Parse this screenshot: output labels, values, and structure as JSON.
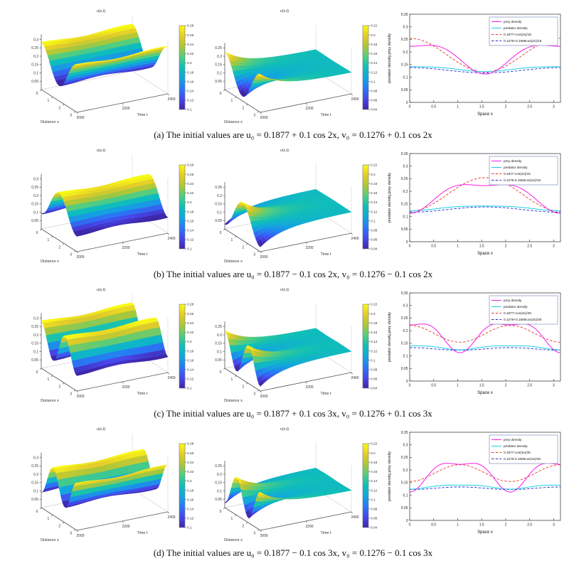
{
  "page": {
    "background": "#ffffff"
  },
  "chart_data": {
    "type": "figure-grid",
    "colormap": [
      [
        0,
        [
          62,
          38,
          168
        ]
      ],
      [
        0.125,
        [
          71,
          71,
          235
        ]
      ],
      [
        0.25,
        [
          40,
          120,
          245
        ]
      ],
      [
        0.375,
        [
          18,
          166,
          222
        ]
      ],
      [
        0.5,
        [
          15,
          190,
          185
        ]
      ],
      [
        0.625,
        [
          80,
          205,
          130
        ]
      ],
      [
        0.75,
        [
          171,
          199,
          57
        ]
      ],
      [
        0.875,
        [
          228,
          203,
          42
        ]
      ],
      [
        1,
        [
          249,
          251,
          21
        ]
      ]
    ],
    "surface_u": {
      "title": "u(x,t)",
      "xlabel": "Distance x",
      "tlabel": "Time t",
      "xticks": [
        "0",
        "1",
        "2",
        "3"
      ],
      "tticks": [
        "2000",
        "2200",
        "2400"
      ],
      "zticks": [
        "0.05",
        "0.1",
        "0.15",
        "0.2",
        "0.25",
        "0.3"
      ],
      "ztop": 0.33,
      "base": 0.1877,
      "amp": 0.1,
      "cmin": 0.1,
      "cmax": 0.28,
      "cticks": [
        "0.1",
        "0.12",
        "0.14",
        "0.16",
        "0.18",
        "0.2",
        "0.22",
        "0.24",
        "0.26",
        "0.28"
      ]
    },
    "surface_v": {
      "title": "v(x,t)",
      "xlabel": "Distance x",
      "tlabel": "Time t",
      "xticks": [
        "0",
        "1",
        "2",
        "3"
      ],
      "tticks": [
        "2000",
        "2200",
        "2400"
      ],
      "zticks": [
        "0.05",
        "0.1",
        "0.15",
        "0.2",
        "0.25"
      ],
      "ztop": 0.28,
      "base": 0.1276,
      "amp": 0.1,
      "cmin": 0.04,
      "cmax": 0.22,
      "cticks": [
        "0.04",
        "0.06",
        "0.08",
        "0.1",
        "0.12",
        "0.14",
        "0.16",
        "0.18",
        "0.2",
        "0.22"
      ]
    },
    "profile": {
      "xlabel": "Space x",
      "ylabel": "predator density,prey density",
      "xticks": [
        "0",
        "0.5",
        "1",
        "1.5",
        "2",
        "2.5",
        "3"
      ],
      "yticks": [
        "0",
        "0.05",
        "0.1",
        "0.15",
        "0.2",
        "0.25",
        "0.3",
        "0.35"
      ],
      "xlim": [
        0,
        3.1416
      ],
      "ylim": [
        0,
        0.35
      ],
      "series": [
        {
          "name": "prey density",
          "color": "#f21ee6",
          "dash": "",
          "base": 0.1877,
          "a2": -0.02
        },
        {
          "name": "predator density",
          "color": "#18cfe6",
          "dash": "",
          "base": 0.134,
          "a2": -0.002
        },
        {
          "name": "u initial profile",
          "color": "#e8352a",
          "dash": "3.5 2.2",
          "base": 0.1877,
          "a2": 0
        },
        {
          "name": "v initial profile",
          "color": "#2430c8",
          "dash": "3.5 2.2",
          "base": 0.1276,
          "a2": 0
        }
      ]
    },
    "rows": [
      {
        "label": "a",
        "k": 2,
        "sign": 1,
        "amps": [
          0.055,
          0.0095,
          0.0667,
          0.0105
        ],
        "legend": [
          "prey density",
          "predator density",
          "0.1877+cos(2x)/15",
          "0.1276+0.1569cos(2x)/15"
        ],
        "caption": "(a)  The initial values are u₀ = 0.1877 + 0.1 cos 2x, v₀ = 0.1276 + 0.1 cos 2x"
      },
      {
        "label": "b",
        "k": 2,
        "sign": -1,
        "amps": [
          -0.055,
          -0.0095,
          -0.0667,
          -0.0105
        ],
        "legend": [
          "prey density",
          "predator density",
          "0.1877-cos(2x)/15",
          "0.1276-0.1569cos(2x)/15"
        ],
        "caption": "(b)  The initial values are u₀ = 0.1877 − 0.1 cos 2x, v₀ = 0.1276 − 0.1 cos 2x"
      },
      {
        "label": "c",
        "k": 3,
        "sign": 1,
        "amps": [
          0.055,
          0.008,
          0.0333,
          0.0052
        ],
        "legend": [
          "prey density",
          "predator density",
          "0.1877+cos(3x)/30",
          "0.1276+0.1569cos(3x)/30"
        ],
        "caption": "(c)  The initial values are u₀ = 0.1877 + 0.1 cos 3x, v₀ = 0.1276 + 0.1 cos 3x"
      },
      {
        "label": "d",
        "k": 3,
        "sign": -1,
        "amps": [
          -0.055,
          -0.008,
          -0.0333,
          -0.0052
        ],
        "legend": [
          "prey density",
          "predator density",
          "0.1877-cos(3x)/30",
          "0.1276-0.1569cos(3x)/30"
        ],
        "caption": "(d)  The initial values are u₀ = 0.1877 − 0.1 cos 3x, v₀ = 0.1276 − 0.1 cos 3x"
      }
    ]
  }
}
